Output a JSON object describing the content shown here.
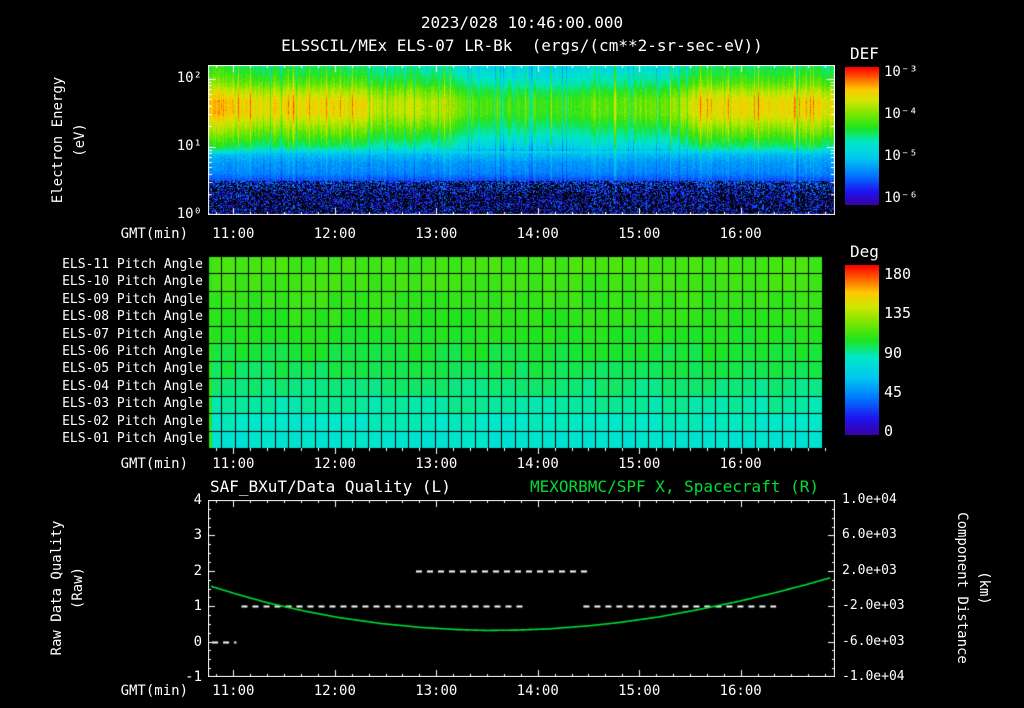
{
  "header": {
    "timestamp": "2023/028 10:46:00.000",
    "title": "ELSSCIL/MEx ELS-07 LR-Bk  (ergs/(cm**2-sr-sec-eV))"
  },
  "time_axis": {
    "label": "GMT(min)",
    "start_hour": 10.75,
    "end_hour": 16.93,
    "ticks": [
      "11:00",
      "12:00",
      "13:00",
      "14:00",
      "15:00",
      "16:00"
    ]
  },
  "colors": {
    "background": "#000000",
    "text": "#ffffff",
    "series_green": "#00dd33",
    "rainbow": [
      [
        0.0,
        "#3c00a0"
      ],
      [
        0.1,
        "#1e14f0"
      ],
      [
        0.22,
        "#0078ff"
      ],
      [
        0.34,
        "#00c8f0"
      ],
      [
        0.46,
        "#00e8c8"
      ],
      [
        0.56,
        "#1ee41e"
      ],
      [
        0.66,
        "#78e600"
      ],
      [
        0.76,
        "#d2e600"
      ],
      [
        0.84,
        "#ffc800"
      ],
      [
        0.92,
        "#ff6400"
      ],
      [
        1.0,
        "#ff0000"
      ]
    ]
  },
  "chart_data": [
    {
      "type": "heatmap",
      "name": "electron-energy-spectrogram",
      "instrument": "ELSSCIL/MEx ELS-07 LR-Bk",
      "units": "ergs/(cm**2-sr-sec-eV)",
      "ylabel_main": "Electron Energy",
      "ylabel_sub": "(eV)",
      "y_scale": "log",
      "log_e_max": 2.2,
      "yticks": [
        {
          "label": "10²",
          "logE": 2
        },
        {
          "label": "10¹",
          "logE": 1
        },
        {
          "label": "10⁰",
          "logE": 0
        }
      ],
      "colorbar": {
        "title": "DEF",
        "ticks": [
          "10⁻³",
          "10⁻⁴",
          "10⁻⁵",
          "10⁻⁶"
        ],
        "flux_min": 1e-06,
        "flux_max": 0.001
      },
      "profile": [
        [
          0,
          0.07
        ],
        [
          0.3,
          0.08
        ],
        [
          0.5,
          0.16
        ],
        [
          0.62,
          0.24
        ],
        [
          0.78,
          0.27
        ],
        [
          0.9,
          0.33
        ],
        [
          1,
          0.5
        ],
        [
          1.15,
          0.6
        ],
        [
          1.35,
          0.72
        ],
        [
          1.5,
          0.8
        ],
        [
          1.68,
          0.8
        ],
        [
          1.82,
          0.72
        ],
        [
          1.95,
          0.62
        ],
        [
          2.1,
          0.55
        ],
        [
          2.2,
          0.52
        ]
      ],
      "envelope": [
        [
          10.75,
          0.95
        ],
        [
          10.85,
          1
        ],
        [
          12.3,
          1
        ],
        [
          12.45,
          0.8
        ],
        [
          12.75,
          0.9
        ],
        [
          13,
          0.82
        ],
        [
          13.35,
          0.62
        ],
        [
          13.6,
          0.55
        ],
        [
          14.4,
          0.55
        ],
        [
          14.9,
          0.62
        ],
        [
          15.3,
          0.7
        ],
        [
          15.55,
          0.95
        ],
        [
          15.8,
          1
        ],
        [
          16.6,
          1
        ],
        [
          16.93,
          0.95
        ]
      ]
    },
    {
      "type": "heatmap",
      "name": "pitch-angle-panel",
      "rows": [
        {
          "label": "ELS-11 Pitch Angle",
          "value_deg": 108
        },
        {
          "label": "ELS-10 Pitch Angle",
          "value_deg": 107
        },
        {
          "label": "ELS-09 Pitch Angle",
          "value_deg": 105
        },
        {
          "label": "ELS-08 Pitch Angle",
          "value_deg": 103
        },
        {
          "label": "ELS-07 Pitch Angle",
          "value_deg": 101
        },
        {
          "label": "ELS-06 Pitch Angle",
          "value_deg": 98
        },
        {
          "label": "ELS-05 Pitch Angle",
          "value_deg": 95
        },
        {
          "label": "ELS-04 Pitch Angle",
          "value_deg": 91
        },
        {
          "label": "ELS-03 Pitch Angle",
          "value_deg": 87
        },
        {
          "label": "ELS-02 Pitch Angle",
          "value_deg": 83
        },
        {
          "label": "ELS-01 Pitch Angle",
          "value_deg": 79
        }
      ],
      "left_strip_deg": 104,
      "gap_start_hour": 16.8,
      "colorbar": {
        "title": "Deg",
        "ticks": [
          180,
          135,
          90,
          45,
          0
        ],
        "min": 0,
        "max": 180
      }
    },
    {
      "type": "line",
      "name": "quality-and-distance",
      "title_left": "SAF_BXuT/Data Quality (L)",
      "title_right": "MEXORBMC/SPF X, Spacecraft (R)",
      "ylabel_left_main": "Raw Data Quality",
      "ylabel_left_sub": "(Raw)",
      "ylabel_right_main": "Component Distance",
      "ylabel_right_sub": "(km)",
      "left_axis": {
        "ticks": [
          4,
          3,
          2,
          1,
          0,
          -1
        ],
        "range": [
          -1,
          4
        ]
      },
      "right_axis": {
        "ticks": [
          "1.0e+04",
          "6.0e+03",
          "2.0e+03",
          "-2.0e+03",
          "-6.0e+03",
          "-1.0e+04"
        ],
        "range": [
          -10000,
          10000
        ]
      },
      "quality_segments": [
        {
          "level": 0,
          "start_hour": 10.79,
          "end_hour": 11.03
        },
        {
          "level": 1,
          "start_hour": 11.08,
          "end_hour": 13.9
        },
        {
          "level": 2,
          "start_hour": 12.8,
          "end_hour": 14.5
        },
        {
          "level": 1,
          "start_hour": 14.45,
          "end_hour": 16.35
        }
      ],
      "distance_curve": [
        [
          10.78,
          250
        ],
        [
          11.05,
          -700
        ],
        [
          11.35,
          -1650
        ],
        [
          11.7,
          -2550
        ],
        [
          12.05,
          -3300
        ],
        [
          12.45,
          -3950
        ],
        [
          12.85,
          -4400
        ],
        [
          13.2,
          -4640
        ],
        [
          13.5,
          -4740
        ],
        [
          13.8,
          -4700
        ],
        [
          14.1,
          -4570
        ],
        [
          14.5,
          -4220
        ],
        [
          14.8,
          -3850
        ],
        [
          15.2,
          -3200
        ],
        [
          15.6,
          -2350
        ],
        [
          16.0,
          -1400
        ],
        [
          16.35,
          -450
        ],
        [
          16.65,
          450
        ],
        [
          16.88,
          1200
        ]
      ]
    }
  ]
}
